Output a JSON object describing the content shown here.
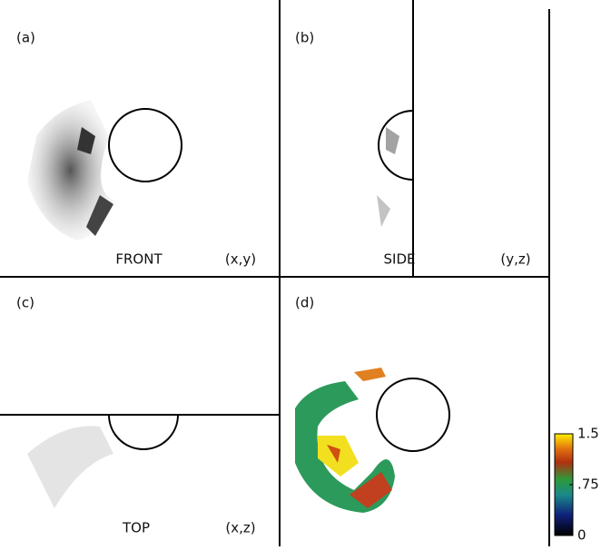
{
  "panels": [
    {
      "label": "(a)",
      "view": "FRONT",
      "axes": "(x,y)"
    },
    {
      "label": "(b)",
      "view": "SIDE",
      "axes": "(y,z)"
    },
    {
      "label": "(c)",
      "view": "TOP",
      "axes": "(x,z)"
    },
    {
      "label": "(d)"
    }
  ],
  "colorbar": {
    "range": [
      0,
      1.5
    ],
    "ticks": [
      0,
      {
        "value": 0.75,
        "label": ".75"
      },
      1.5
    ]
  }
}
